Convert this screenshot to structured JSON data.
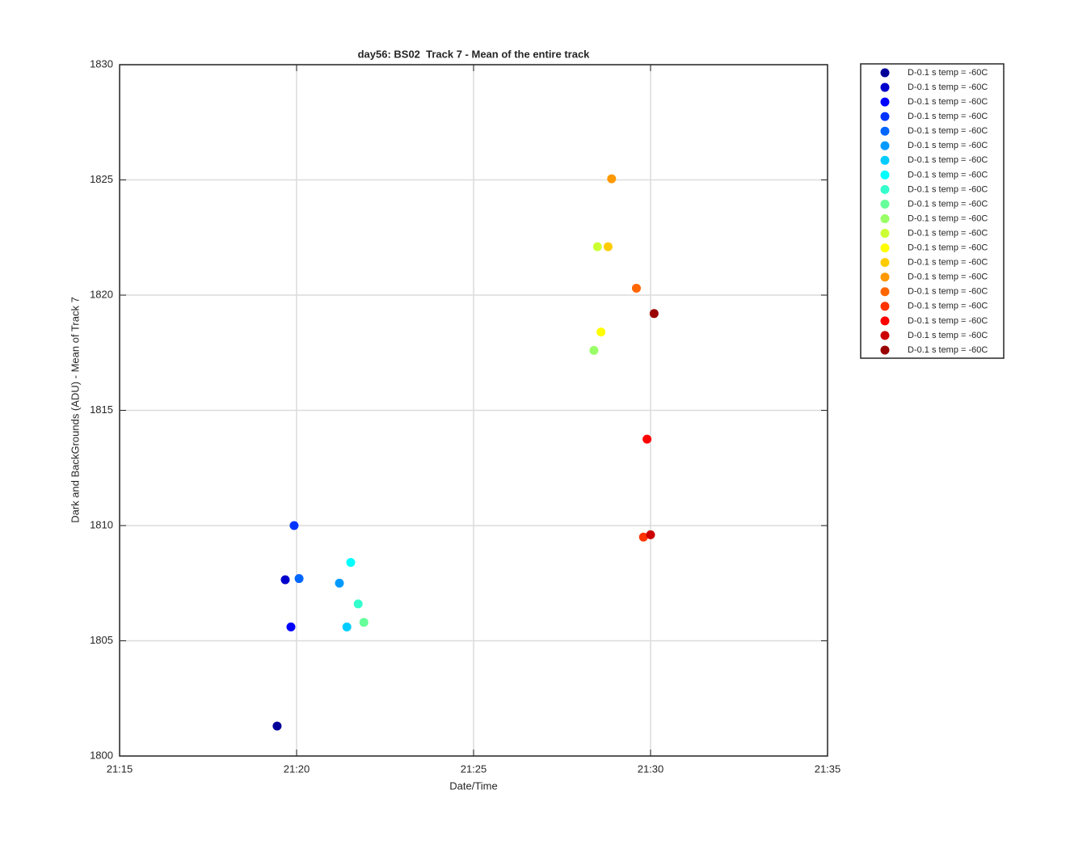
{
  "chart_data": {
    "type": "scatter",
    "title": "day56: BS02  Track 7 - Mean of the entire track",
    "x_label": "Date/Time",
    "y_label": "Dark and BackGrounds (ADU) - Mean of Track 7",
    "xlim": [
      1275,
      1295
    ],
    "xticks": [
      {
        "value": 1275,
        "label": "21:15"
      },
      {
        "value": 1280,
        "label": "21:20"
      },
      {
        "value": 1285,
        "label": "21:25"
      },
      {
        "value": 1290,
        "label": "21:30"
      },
      {
        "value": 1295,
        "label": "21:35"
      }
    ],
    "ylim": [
      1800,
      1830
    ],
    "yticks": [
      1800,
      1805,
      1810,
      1815,
      1820,
      1825,
      1830
    ],
    "grid": true,
    "legend": "northeastoutside",
    "series": [
      {
        "name": "D-0.1 s temp = -60C",
        "color": "#000099",
        "x": [
          1279.45
        ],
        "values": [
          1801.3
        ]
      },
      {
        "name": "D-0.1 s temp = -60C",
        "color": "#0000cc",
        "x": [
          1279.68
        ],
        "values": [
          1807.65
        ]
      },
      {
        "name": "D-0.1 s temp = -60C",
        "color": "#0000ff",
        "x": [
          1279.84
        ],
        "values": [
          1805.6
        ]
      },
      {
        "name": "D-0.1 s temp = -60C",
        "color": "#0033ff",
        "x": [
          1279.93
        ],
        "values": [
          1810.0
        ]
      },
      {
        "name": "D-0.1 s temp = -60C",
        "color": "#0066ff",
        "x": [
          1280.07
        ],
        "values": [
          1807.7
        ]
      },
      {
        "name": "D-0.1 s temp = -60C",
        "color": "#0099ff",
        "x": [
          1281.21
        ],
        "values": [
          1807.5
        ]
      },
      {
        "name": "D-0.1 s temp = -60C",
        "color": "#00ccff",
        "x": [
          1281.42
        ],
        "values": [
          1805.6
        ]
      },
      {
        "name": "D-0.1 s temp = -60C",
        "color": "#00ffff",
        "x": [
          1281.53
        ],
        "values": [
          1808.4
        ]
      },
      {
        "name": "D-0.1 s temp = -60C",
        "color": "#33ffcc",
        "x": [
          1281.74
        ],
        "values": [
          1806.6
        ]
      },
      {
        "name": "D-0.1 s temp = -60C",
        "color": "#66ff99",
        "x": [
          1281.9
        ],
        "values": [
          1805.8
        ]
      },
      {
        "name": "D-0.1 s temp = -60C",
        "color": "#99ff66",
        "x": [
          1288.4
        ],
        "values": [
          1817.6
        ]
      },
      {
        "name": "D-0.1 s temp = -60C",
        "color": "#ccff33",
        "x": [
          1288.5
        ],
        "values": [
          1822.1
        ]
      },
      {
        "name": "D-0.1 s temp = -60C",
        "color": "#ffff00",
        "x": [
          1288.6
        ],
        "values": [
          1818.4
        ]
      },
      {
        "name": "D-0.1 s temp = -60C",
        "color": "#ffcc00",
        "x": [
          1288.8
        ],
        "values": [
          1822.1
        ]
      },
      {
        "name": "D-0.1 s temp = -60C",
        "color": "#ff9900",
        "x": [
          1288.9
        ],
        "values": [
          1825.05
        ]
      },
      {
        "name": "D-0.1 s temp = -60C",
        "color": "#ff6600",
        "x": [
          1289.6
        ],
        "values": [
          1820.3
        ]
      },
      {
        "name": "D-0.1 s temp = -60C",
        "color": "#ff3300",
        "x": [
          1289.8
        ],
        "values": [
          1809.5
        ]
      },
      {
        "name": "D-0.1 s temp = -60C",
        "color": "#ff0000",
        "x": [
          1289.9
        ],
        "values": [
          1813.75
        ]
      },
      {
        "name": "D-0.1 s temp = -60C",
        "color": "#cc0000",
        "x": [
          1290.0
        ],
        "values": [
          1809.6
        ]
      },
      {
        "name": "D-0.1 s temp = -60C",
        "color": "#990000",
        "x": [
          1290.1
        ],
        "values": [
          1819.2
        ]
      }
    ]
  }
}
